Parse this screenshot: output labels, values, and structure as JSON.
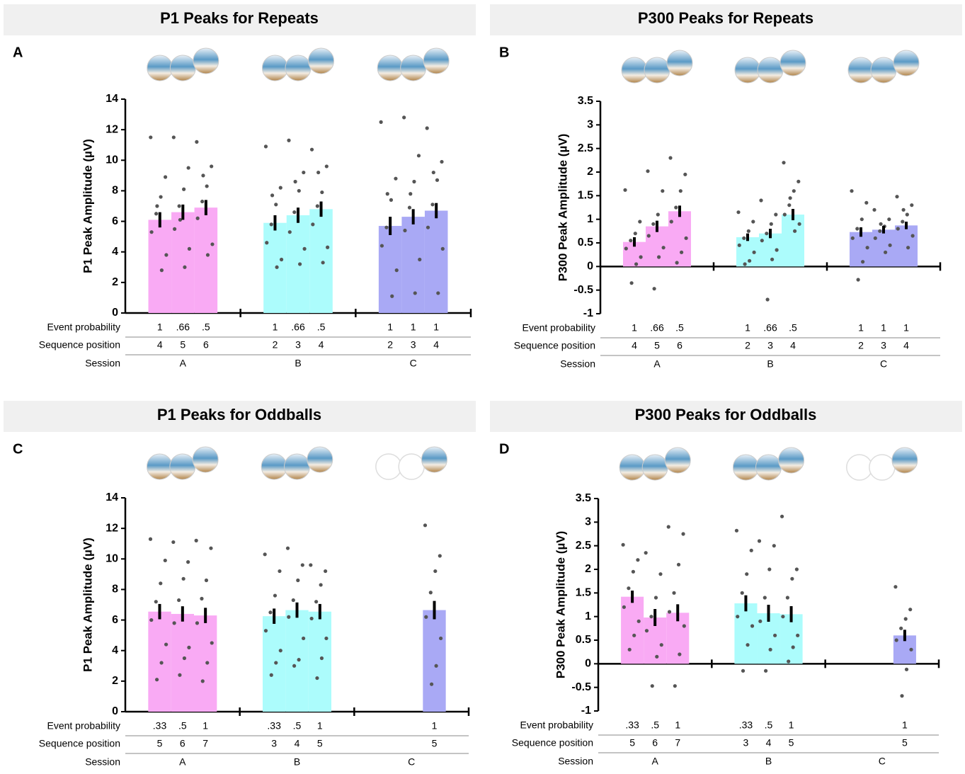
{
  "chart_data": [
    {
      "type": "bar",
      "title": "P1 Peaks for Repeats",
      "panel_label": "A",
      "y_label": "P1 Peak Amplitude (µV)",
      "ylim": [
        0,
        14
      ],
      "yticks": [
        0,
        2,
        4,
        6,
        8,
        10,
        12,
        14
      ],
      "row_labels": [
        "Event probability",
        "Sequence position",
        "Session"
      ],
      "groups": [
        {
          "session": "A",
          "color": "#f9aaf4",
          "event_probability": [
            "1",
            ".66",
            ".5"
          ],
          "sequence_position": [
            4,
            5,
            6
          ],
          "values": [
            6.1,
            6.6,
            6.9
          ],
          "errors": [
            0.5,
            0.5,
            0.5
          ],
          "points": [
            [
              11.5,
              8.9,
              7.6,
              6.5,
              5.3,
              3.8,
              2.8,
              7.0
            ],
            [
              11.5,
              9.5,
              8.1,
              7.0,
              5.5,
              4.2,
              3.0,
              6.1
            ],
            [
              11.2,
              9.6,
              8.3,
              7.3,
              6.2,
              4.5,
              3.8,
              9.0
            ]
          ]
        },
        {
          "session": "B",
          "color": "#acfcfc",
          "event_probability": [
            "1",
            ".66",
            ".5"
          ],
          "sequence_position": [
            2,
            3,
            4
          ],
          "values": [
            5.9,
            6.4,
            6.8
          ],
          "errors": [
            0.5,
            0.5,
            0.5
          ],
          "points": [
            [
              10.9,
              8.2,
              7.1,
              5.8,
              4.6,
              3.5,
              3.0,
              7.7
            ],
            [
              11.3,
              9.2,
              8.0,
              6.6,
              5.3,
              4.2,
              3.2,
              8.6
            ],
            [
              10.7,
              9.6,
              7.9,
              7.0,
              5.8,
              4.3,
              3.3,
              9.2
            ]
          ]
        },
        {
          "session": "C",
          "color": "#a9a9f5",
          "event_probability": [
            "1",
            "1",
            "1"
          ],
          "sequence_position": [
            2,
            3,
            4
          ],
          "values": [
            5.7,
            6.3,
            6.7
          ],
          "errors": [
            0.6,
            0.5,
            0.5
          ],
          "points": [
            [
              12.5,
              8.8,
              7.4,
              5.6,
              4.4,
              2.8,
              1.1,
              7.8
            ],
            [
              12.8,
              10.3,
              8.6,
              6.9,
              5.4,
              3.5,
              1.3,
              7.8
            ],
            [
              12.1,
              9.9,
              8.7,
              7.1,
              5.6,
              4.2,
              1.3,
              9.2
            ]
          ]
        }
      ]
    },
    {
      "type": "bar",
      "title": "P300 Peaks for Repeats",
      "panel_label": "B",
      "y_label": "P300 Peak Amplitude (µV)",
      "ylim": [
        -1,
        3.5
      ],
      "yticks": [
        -1,
        -0.5,
        0,
        0.5,
        1,
        1.5,
        2,
        2.5,
        3,
        3.5
      ],
      "row_labels": [
        "Event probability",
        "Sequence position",
        "Session"
      ],
      "groups": [
        {
          "session": "A",
          "color": "#f9aaf4",
          "event_probability": [
            "1",
            ".66",
            ".5"
          ],
          "sequence_position": [
            4,
            5,
            6
          ],
          "values": [
            0.52,
            0.85,
            1.17
          ],
          "errors": [
            0.1,
            0.12,
            0.12
          ],
          "points": [
            [
              1.62,
              0.95,
              0.7,
              0.55,
              0.38,
              0.2,
              0.05,
              -0.35
            ],
            [
              2.02,
              1.6,
              1.1,
              0.9,
              0.65,
              0.4,
              0.2,
              -0.47
            ],
            [
              2.3,
              1.95,
              1.6,
              1.25,
              0.95,
              0.6,
              0.3,
              0.08
            ]
          ]
        },
        {
          "session": "B",
          "color": "#acfcfc",
          "event_probability": [
            "1",
            ".66",
            ".5"
          ],
          "sequence_position": [
            2,
            3,
            4
          ],
          "values": [
            0.62,
            0.7,
            1.1
          ],
          "errors": [
            0.08,
            0.1,
            0.12
          ],
          "points": [
            [
              1.15,
              0.95,
              0.75,
              0.6,
              0.45,
              0.3,
              0.12,
              0.05
            ],
            [
              1.4,
              1.1,
              0.9,
              0.7,
              0.55,
              0.35,
              0.15,
              -0.7
            ],
            [
              2.2,
              1.8,
              1.6,
              1.3,
              1.1,
              0.9,
              0.75,
              1.45
            ]
          ]
        },
        {
          "session": "C",
          "color": "#a9a9f5",
          "event_probability": [
            "1",
            "1",
            "1"
          ],
          "sequence_position": [
            2,
            3,
            4
          ],
          "values": [
            0.73,
            0.78,
            0.87
          ],
          "errors": [
            0.1,
            0.08,
            0.08
          ],
          "points": [
            [
              1.6,
              1.35,
              1.0,
              0.8,
              0.6,
              0.4,
              0.1,
              -0.28
            ],
            [
              1.2,
              1.0,
              0.85,
              0.75,
              0.6,
              0.45,
              0.3,
              0.9
            ],
            [
              1.48,
              1.3,
              1.1,
              0.95,
              0.8,
              0.65,
              0.4,
              1.2
            ]
          ]
        }
      ]
    },
    {
      "type": "bar",
      "title": "P1 Peaks for Oddballs",
      "panel_label": "C",
      "y_label": "P1 Peak Amplitude (µV)",
      "ylim": [
        0,
        14
      ],
      "yticks": [
        0,
        2,
        4,
        6,
        8,
        10,
        12,
        14
      ],
      "row_labels": [
        "Event probability",
        "Sequence position",
        "Session"
      ],
      "groups": [
        {
          "session": "A",
          "color": "#f9aaf4",
          "event_probability": [
            ".33",
            ".5",
            "1"
          ],
          "sequence_position": [
            5,
            6,
            7
          ],
          "values": [
            6.55,
            6.4,
            6.3
          ],
          "errors": [
            0.5,
            0.5,
            0.5
          ],
          "points": [
            [
              11.3,
              9.9,
              8.4,
              7.2,
              6.0,
              4.4,
              3.2,
              2.1
            ],
            [
              11.1,
              9.8,
              8.7,
              7.3,
              5.8,
              4.2,
              3.5,
              2.4
            ],
            [
              11.2,
              10.7,
              8.6,
              7.4,
              5.8,
              4.5,
              3.2,
              2.0
            ]
          ]
        },
        {
          "session": "B",
          "color": "#acfcfc",
          "event_probability": [
            ".33",
            ".5",
            "1"
          ],
          "sequence_position": [
            3,
            4,
            5
          ],
          "values": [
            6.25,
            6.65,
            6.55
          ],
          "errors": [
            0.5,
            0.5,
            0.5
          ],
          "points": [
            [
              10.3,
              9.2,
              7.6,
              6.5,
              5.3,
              4.0,
              3.2,
              2.4
            ],
            [
              10.7,
              9.6,
              8.6,
              7.3,
              6.2,
              4.8,
              3.4,
              3.0
            ],
            [
              9.6,
              9.2,
              8.3,
              7.2,
              6.1,
              4.8,
              3.5,
              2.2
            ]
          ]
        },
        {
          "session": "C",
          "color": "#a9a9f5",
          "event_probability": [
            null,
            null,
            "1"
          ],
          "sequence_position": [
            null,
            null,
            5
          ],
          "values": [
            null,
            null,
            6.65
          ],
          "errors": [
            null,
            null,
            0.6
          ],
          "points": [
            null,
            null,
            [
              12.2,
              10.2,
              9.2,
              7.8,
              6.2,
              4.8,
              3.0,
              1.8
            ]
          ]
        }
      ]
    },
    {
      "type": "bar",
      "title": "P300 Peaks for Oddballs",
      "panel_label": "D",
      "y_label": "P300 Peak Amplitude (µV)",
      "ylim": [
        -1,
        3.5
      ],
      "yticks": [
        -1,
        -0.5,
        0,
        0.5,
        1,
        1.5,
        2,
        2.5,
        3,
        3.5
      ],
      "row_labels": [
        "Event probability",
        "Sequence position",
        "Session"
      ],
      "groups": [
        {
          "session": "A",
          "color": "#f9aaf4",
          "event_probability": [
            ".33",
            ".5",
            "1"
          ],
          "sequence_position": [
            5,
            6,
            7
          ],
          "values": [
            1.42,
            0.98,
            1.08
          ],
          "errors": [
            0.13,
            0.18,
            0.18
          ],
          "points": [
            [
              2.52,
              2.2,
              1.95,
              1.6,
              1.2,
              0.9,
              0.6,
              0.3
            ],
            [
              2.35,
              1.9,
              1.4,
              1.0,
              0.7,
              0.4,
              0.15,
              -0.47
            ],
            [
              2.9,
              2.75,
              2.1,
              1.5,
              1.1,
              0.8,
              0.2,
              -0.47
            ]
          ]
        },
        {
          "session": "B",
          "color": "#acfcfc",
          "event_probability": [
            ".33",
            ".5",
            "1"
          ],
          "sequence_position": [
            3,
            4,
            5
          ],
          "values": [
            1.28,
            1.07,
            1.05
          ],
          "errors": [
            0.17,
            0.18,
            0.17
          ],
          "points": [
            [
              2.82,
              2.4,
              1.9,
              1.5,
              1.0,
              0.8,
              0.4,
              -0.15
            ],
            [
              2.6,
              2.5,
              2.0,
              1.4,
              0.9,
              0.6,
              0.3,
              -0.15
            ],
            [
              3.12,
              2.0,
              1.8,
              1.4,
              1.0,
              0.6,
              0.35,
              0.05
            ]
          ]
        },
        {
          "session": "C",
          "color": "#a9a9f5",
          "event_probability": [
            null,
            null,
            "1"
          ],
          "sequence_position": [
            null,
            null,
            5
          ],
          "values": [
            null,
            null,
            0.6
          ],
          "errors": [
            null,
            null,
            0.12
          ],
          "points": [
            null,
            null,
            [
              1.63,
              1.15,
              0.95,
              0.75,
              0.5,
              0.3,
              -0.12,
              -0.68
            ]
          ]
        }
      ]
    }
  ]
}
